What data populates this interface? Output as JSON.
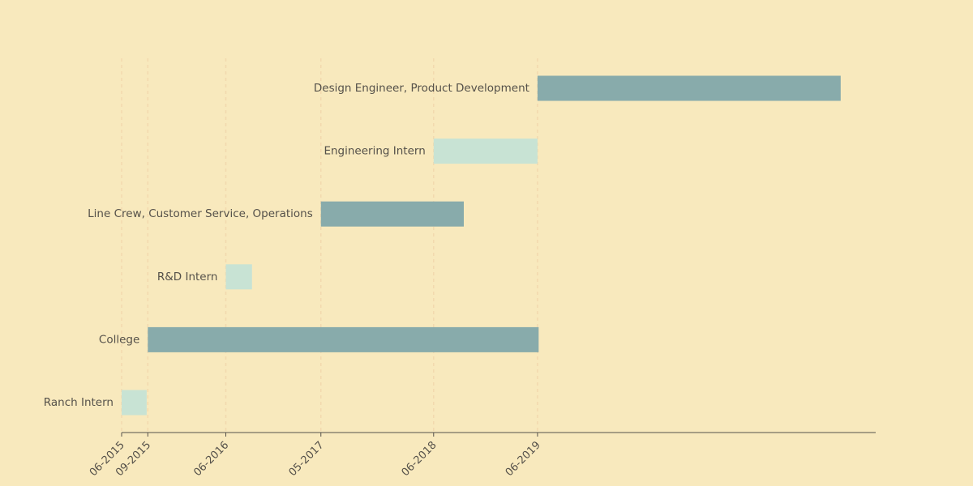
{
  "chart_data": {
    "type": "bar",
    "orientation": "horizontal",
    "x_axis_type": "date",
    "x_tick_labels": [
      "06-2015",
      "09-2015",
      "06-2016",
      "05-2017",
      "06-2018",
      "06-2019"
    ],
    "x_ticks": [
      "2015-06-01",
      "2015-09-01",
      "2016-06-01",
      "2017-05-01",
      "2018-06-01",
      "2019-06-01"
    ],
    "xlim": [
      "2015-06-01",
      "2022-09-01"
    ],
    "grid": "vertical dashed lines at ticks",
    "tasks": [
      {
        "label": "Ranch Intern",
        "start": "2015-06-01",
        "end": "2015-08-28",
        "style": "light"
      },
      {
        "label": "College",
        "start": "2015-09-01",
        "end": "2019-06-05",
        "style": "dark"
      },
      {
        "label": "R&D Intern",
        "start": "2016-06-01",
        "end": "2016-09-01",
        "style": "light"
      },
      {
        "label": "Line Crew, Customer Service, Operations",
        "start": "2017-05-01",
        "end": "2018-09-15",
        "style": "dark"
      },
      {
        "label": "Engineering Intern",
        "start": "2018-06-01",
        "end": "2019-06-01",
        "style": "light"
      },
      {
        "label": "Design Engineer, Product Development",
        "start": "2019-06-01",
        "end": "2022-05-01",
        "style": "dark"
      }
    ],
    "colors": {
      "background": "#f8e9bd",
      "dark_bar": "#88abab",
      "light_bar": "#c8e3d4",
      "grid": "#f2d9ae",
      "axis": "#55514a",
      "text": "#55514a"
    }
  }
}
